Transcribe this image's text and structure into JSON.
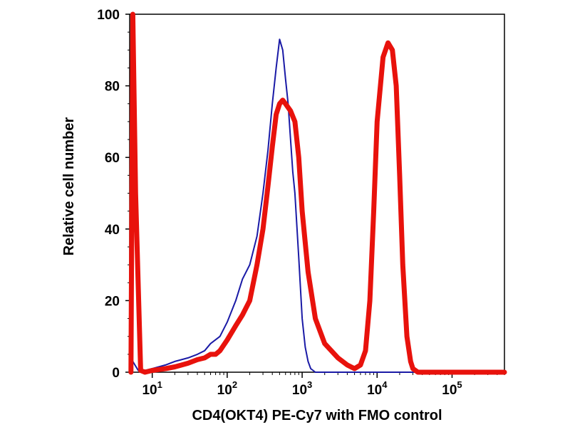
{
  "chart_data": {
    "type": "line",
    "title": "",
    "xlabel": "CD4(OKT4) PE-Cy7 with FMO control",
    "ylabel": "Relative cell number",
    "x_scale": "log",
    "xlim": [
      5,
      500000
    ],
    "ylim": [
      0,
      100
    ],
    "grid": false,
    "x_ticks": [
      {
        "value": 10,
        "base": "10",
        "exp": "1"
      },
      {
        "value": 100,
        "base": "10",
        "exp": "2"
      },
      {
        "value": 1000,
        "base": "10",
        "exp": "3"
      },
      {
        "value": 10000,
        "base": "10",
        "exp": "4"
      },
      {
        "value": 100000,
        "base": "10",
        "exp": "5"
      }
    ],
    "y_ticks": [
      0,
      20,
      40,
      60,
      80,
      100
    ],
    "series": [
      {
        "color": "#1a1aa6",
        "x": [
          5.2,
          5.5,
          6.5,
          8,
          10,
          15,
          20,
          30,
          40,
          50,
          60,
          80,
          100,
          130,
          160,
          200,
          250,
          300,
          350,
          400,
          450,
          500,
          550,
          600,
          650,
          700,
          750,
          800,
          900,
          1000,
          1100,
          1200,
          1300,
          1400,
          1500,
          2000,
          5000,
          10000,
          100000,
          500000
        ],
        "y": [
          0,
          3,
          0.5,
          0.5,
          1,
          2,
          3,
          4,
          5,
          6,
          8,
          10,
          14,
          20,
          26,
          30,
          38,
          50,
          62,
          75,
          85,
          93,
          90,
          82,
          75,
          65,
          56,
          50,
          32,
          15,
          7,
          3,
          1,
          0.5,
          0,
          0,
          0,
          0,
          0,
          0
        ]
      },
      {
        "color": "#e8120c",
        "x": [
          5.2,
          5.5,
          6,
          7,
          8,
          10,
          15,
          20,
          30,
          40,
          50,
          60,
          70,
          80,
          100,
          130,
          160,
          200,
          250,
          300,
          350,
          400,
          450,
          500,
          550,
          600,
          700,
          800,
          900,
          1000,
          1200,
          1500,
          2000,
          3000,
          4000,
          5000,
          6000,
          7000,
          8000,
          9000,
          10000,
          12000,
          14000,
          16000,
          18000,
          20000,
          22000,
          25000,
          28000,
          30000,
          35000,
          40000,
          100000,
          500000
        ],
        "y": [
          0,
          100,
          50,
          0.5,
          0,
          0.5,
          1,
          1.5,
          2.5,
          3.5,
          4,
          5,
          5,
          6,
          9,
          13,
          16,
          20,
          30,
          40,
          52,
          63,
          72,
          75,
          76,
          75,
          73,
          70,
          60,
          45,
          28,
          15,
          8,
          4,
          2,
          1,
          2,
          6,
          20,
          45,
          70,
          88,
          92,
          90,
          80,
          55,
          30,
          10,
          3,
          1,
          0,
          0,
          0,
          0
        ]
      }
    ]
  }
}
